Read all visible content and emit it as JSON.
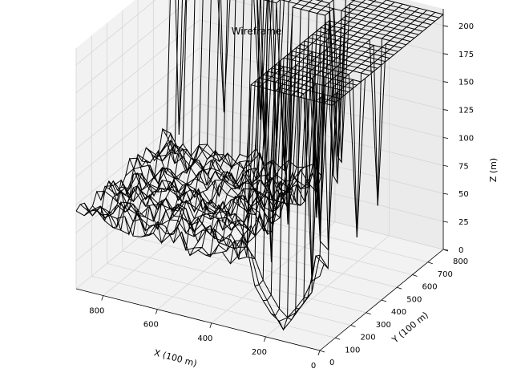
{
  "chart_data": {
    "type": "wireframe-3d",
    "title": "Wireframe",
    "xlabel": "X (100 m)",
    "ylabel": "Y (100 m)",
    "zlabel": "Z (m)",
    "xlim": [
      0,
      900
    ],
    "ylim": [
      0,
      800
    ],
    "zlim": [
      0,
      215
    ],
    "xticks": [
      0,
      200,
      400,
      600,
      800
    ],
    "yticks": [
      0,
      100,
      200,
      300,
      400,
      500,
      600,
      700,
      800
    ],
    "zticks": [
      0,
      25,
      50,
      75,
      100,
      125,
      150,
      175,
      200
    ],
    "grid": true,
    "panes": "light gray",
    "wire_color": "#000000",
    "plateau_height": 210,
    "lower_floor_height": 80,
    "plateau_region": {
      "x_min": 0,
      "x_max": 900,
      "y_min": 600,
      "y_max": 800
    },
    "plateau_strip_front": {
      "x_min": 0,
      "x_max": 300,
      "y_min": 0,
      "y_max": 600
    },
    "deepest_point": {
      "x": 150,
      "y": 30,
      "z": 5
    }
  }
}
